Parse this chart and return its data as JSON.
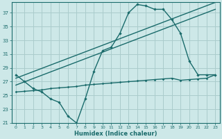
{
  "xlabel": "Humidex (Indice chaleur)",
  "background_color": "#cde8e8",
  "grid_color": "#aacccc",
  "line_color": "#1a6b6b",
  "xlim": [
    -0.5,
    23.5
  ],
  "ylim": [
    21,
    38.5
  ],
  "yticks": [
    21,
    23,
    25,
    27,
    29,
    31,
    33,
    35,
    37
  ],
  "xticks": [
    0,
    1,
    2,
    3,
    4,
    5,
    6,
    7,
    8,
    9,
    10,
    11,
    12,
    13,
    14,
    15,
    16,
    17,
    18,
    19,
    20,
    21,
    22,
    23
  ],
  "line1_x": [
    0,
    1,
    2,
    3,
    4,
    5,
    6,
    7,
    8,
    9,
    10,
    11,
    12,
    13,
    14,
    15,
    16,
    17,
    18,
    19,
    20,
    21,
    22,
    23
  ],
  "line1_y": [
    28,
    27,
    26,
    25.5,
    24.5,
    24,
    22,
    21,
    24.5,
    28.5,
    31.5,
    32,
    34,
    37,
    38.2,
    38,
    37.5,
    37.5,
    36,
    34,
    30,
    28,
    28,
    28
  ],
  "line2_x": [
    0,
    1,
    2,
    3,
    4,
    5,
    6,
    7,
    8,
    9,
    10,
    11,
    12,
    13,
    14,
    15,
    16,
    17,
    18,
    19,
    20,
    21,
    22,
    23
  ],
  "line2_y": [
    25.5,
    25.6,
    25.7,
    25.8,
    26.0,
    26.1,
    26.2,
    26.3,
    26.5,
    26.6,
    26.7,
    26.8,
    26.9,
    27.0,
    27.1,
    27.2,
    27.3,
    27.4,
    27.5,
    27.2,
    27.3,
    27.4,
    27.5,
    28.0
  ],
  "line3_x": [
    0,
    23
  ],
  "line3_y": [
    26.5,
    37.5
  ],
  "line4_x": [
    0,
    23
  ],
  "line4_y": [
    27.5,
    38.5
  ]
}
